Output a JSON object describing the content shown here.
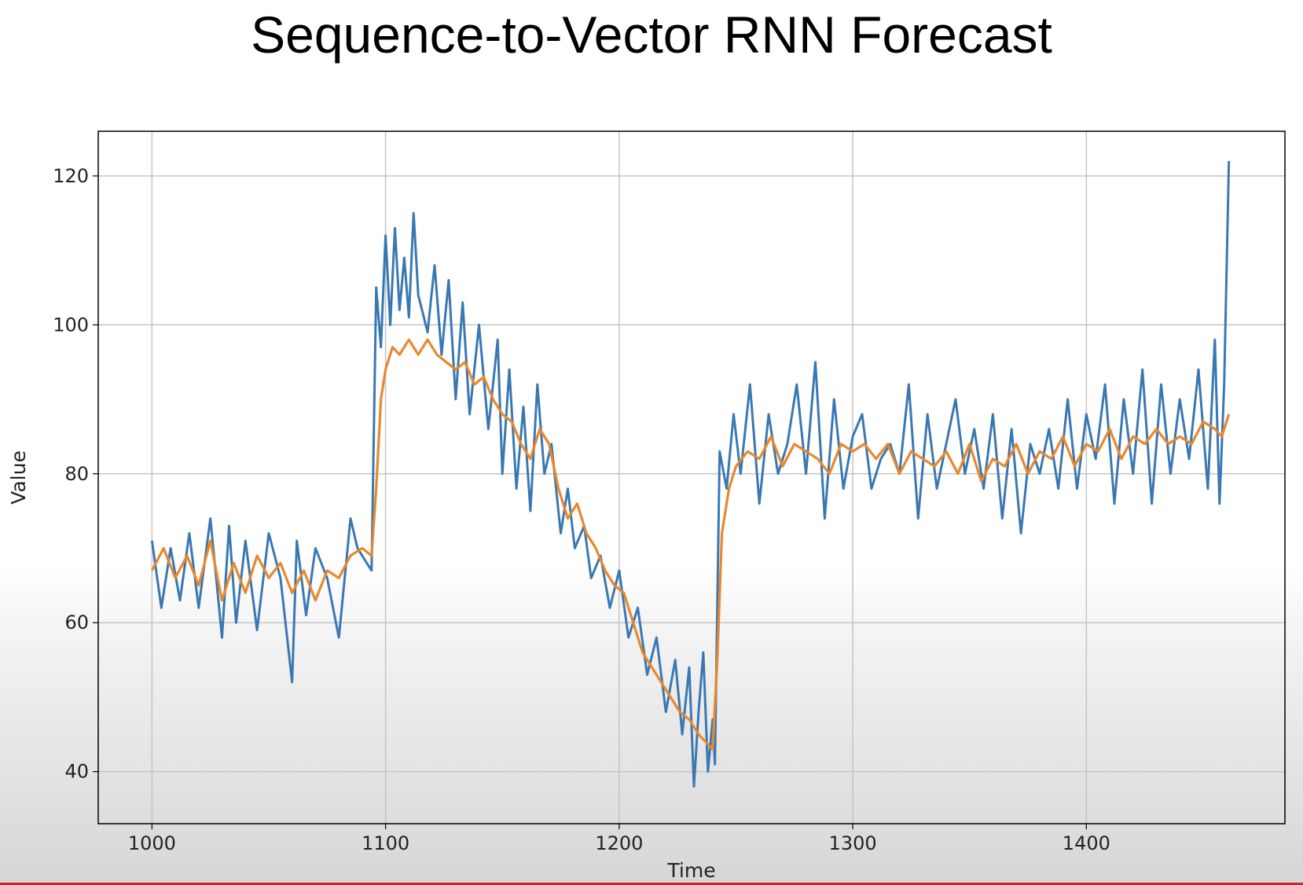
{
  "chart_data": {
    "type": "line",
    "title": "Sequence-to-Vector RNN Forecast",
    "xlabel": "Time",
    "ylabel": "Value",
    "xlim": [
      977,
      1485
    ],
    "ylim": [
      33,
      126
    ],
    "xticks": [
      1000,
      1100,
      1200,
      1300,
      1400
    ],
    "yticks": [
      40,
      60,
      80,
      100,
      120
    ],
    "grid": true,
    "series": [
      {
        "color": "#3a78b2",
        "x": [
          1000,
          1004,
          1008,
          1012,
          1016,
          1020,
          1025,
          1030,
          1033,
          1036,
          1040,
          1045,
          1050,
          1055,
          1060,
          1062,
          1066,
          1070,
          1075,
          1080,
          1085,
          1088,
          1092,
          1094,
          1096,
          1098,
          1100,
          1102,
          1104,
          1106,
          1108,
          1110,
          1112,
          1114,
          1118,
          1121,
          1124,
          1127,
          1130,
          1133,
          1136,
          1140,
          1144,
          1148,
          1150,
          1153,
          1156,
          1159,
          1162,
          1165,
          1168,
          1171,
          1175,
          1178,
          1181,
          1185,
          1188,
          1192,
          1196,
          1200,
          1204,
          1208,
          1212,
          1216,
          1220,
          1224,
          1227,
          1230,
          1232,
          1234,
          1236,
          1238,
          1240,
          1241,
          1243,
          1246,
          1249,
          1252,
          1256,
          1260,
          1264,
          1268,
          1272,
          1276,
          1280,
          1284,
          1288,
          1292,
          1296,
          1300,
          1304,
          1308,
          1312,
          1316,
          1320,
          1324,
          1328,
          1332,
          1336,
          1340,
          1344,
          1348,
          1352,
          1356,
          1360,
          1364,
          1368,
          1372,
          1376,
          1380,
          1384,
          1388,
          1392,
          1396,
          1400,
          1404,
          1408,
          1412,
          1416,
          1420,
          1424,
          1428,
          1432,
          1436,
          1440,
          1444,
          1448,
          1452,
          1455,
          1457,
          1459,
          1461
        ],
        "y": [
          71,
          62,
          70,
          63,
          72,
          62,
          74,
          58,
          73,
          60,
          71,
          59,
          72,
          66,
          52,
          71,
          61,
          70,
          66,
          58,
          74,
          70,
          68,
          67,
          105,
          97,
          112,
          100,
          113,
          102,
          109,
          101,
          115,
          104,
          99,
          108,
          96,
          106,
          90,
          103,
          88,
          100,
          86,
          98,
          80,
          94,
          78,
          89,
          75,
          92,
          80,
          84,
          72,
          78,
          70,
          73,
          66,
          69,
          62,
          67,
          58,
          62,
          53,
          58,
          48,
          55,
          45,
          54,
          38,
          48,
          56,
          40,
          47,
          41,
          83,
          78,
          88,
          80,
          92,
          76,
          88,
          80,
          84,
          92,
          80,
          95,
          74,
          90,
          78,
          85,
          88,
          78,
          82,
          84,
          80,
          92,
          74,
          88,
          78,
          84,
          90,
          80,
          86,
          78,
          88,
          74,
          86,
          72,
          84,
          80,
          86,
          78,
          90,
          78,
          88,
          82,
          92,
          76,
          90,
          80,
          94,
          76,
          92,
          80,
          90,
          82,
          94,
          78,
          98,
          76,
          92,
          122
        ]
      },
      {
        "color": "#e8882e",
        "x": [
          1000,
          1005,
          1010,
          1015,
          1020,
          1025,
          1030,
          1035,
          1040,
          1045,
          1050,
          1055,
          1060,
          1065,
          1070,
          1075,
          1080,
          1085,
          1090,
          1094,
          1096,
          1098,
          1100,
          1103,
          1106,
          1110,
          1114,
          1118,
          1122,
          1126,
          1130,
          1134,
          1138,
          1142,
          1146,
          1150,
          1154,
          1158,
          1162,
          1166,
          1170,
          1174,
          1178,
          1182,
          1186,
          1190,
          1194,
          1198,
          1202,
          1206,
          1210,
          1214,
          1218,
          1222,
          1226,
          1230,
          1234,
          1237,
          1240,
          1242,
          1244,
          1247,
          1250,
          1255,
          1260,
          1265,
          1270,
          1275,
          1280,
          1285,
          1290,
          1295,
          1300,
          1305,
          1310,
          1315,
          1320,
          1325,
          1330,
          1335,
          1340,
          1345,
          1350,
          1355,
          1360,
          1365,
          1370,
          1375,
          1380,
          1385,
          1390,
          1395,
          1400,
          1405,
          1410,
          1415,
          1420,
          1425,
          1430,
          1435,
          1440,
          1445,
          1450,
          1455,
          1458,
          1461
        ],
        "y": [
          67,
          70,
          66,
          69,
          65,
          71,
          63,
          68,
          64,
          69,
          66,
          68,
          64,
          67,
          63,
          67,
          66,
          69,
          70,
          69,
          78,
          90,
          94,
          97,
          96,
          98,
          96,
          98,
          96,
          95,
          94,
          95,
          92,
          93,
          90,
          88,
          87,
          84,
          82,
          86,
          84,
          78,
          74,
          76,
          72,
          70,
          67,
          65,
          64,
          60,
          56,
          54,
          52,
          50,
          48,
          47,
          45,
          44,
          43,
          55,
          72,
          78,
          81,
          83,
          82,
          85,
          81,
          84,
          83,
          82,
          80,
          84,
          83,
          84,
          82,
          84,
          80,
          83,
          82,
          81,
          83,
          80,
          84,
          79,
          82,
          81,
          84,
          80,
          83,
          82,
          85,
          81,
          84,
          83,
          86,
          82,
          85,
          84,
          86,
          84,
          85,
          84,
          87,
          86,
          85,
          88
        ]
      }
    ]
  }
}
